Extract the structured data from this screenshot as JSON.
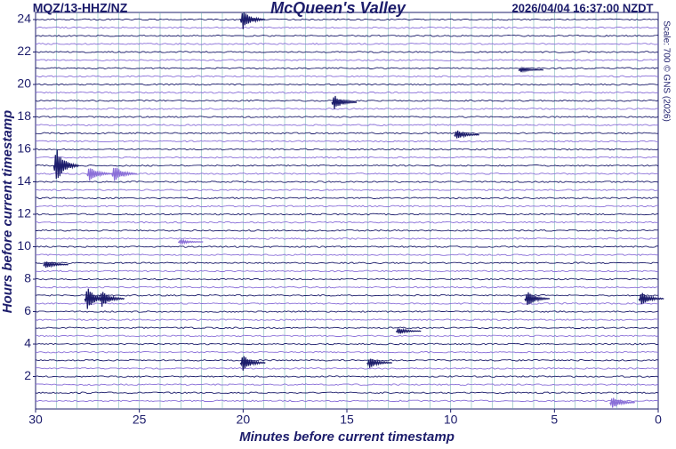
{
  "chart_data": {
    "type": "helicorder",
    "title": "McQueen's Valley",
    "station": "MQZ/13-HHZ/NZ",
    "timestamp": "2026/04/04 16:37:00 NZDT",
    "credit": "Scale: 700 © GNS (2026)",
    "x_label": "Minutes before current timestamp",
    "y_label": "Hours before current timestamp",
    "xlim": [
      30,
      0
    ],
    "xticks": [
      30,
      25,
      20,
      15,
      10,
      5,
      0
    ],
    "ylim": [
      0,
      24
    ],
    "yticks": [
      2,
      4,
      6,
      8,
      10,
      12,
      14,
      16,
      18,
      20,
      22,
      24
    ],
    "trace_colors": [
      "#1c1c6b",
      "#8a6fd8"
    ],
    "grid_color": "#5fa8a8",
    "events": [
      {
        "minute": 20,
        "hour": 24,
        "amplitude": 0.6
      },
      {
        "minute": 15.6,
        "hour": 18.9,
        "amplitude": 0.45
      },
      {
        "minute": 29,
        "hour": 15,
        "amplitude": 1.1
      },
      {
        "minute": 27.4,
        "hour": 14.5,
        "amplitude": 0.5
      },
      {
        "minute": 26.2,
        "hour": 14.5,
        "amplitude": 0.55
      },
      {
        "minute": 9.7,
        "hour": 16.9,
        "amplitude": 0.3
      },
      {
        "minute": 29.5,
        "hour": 8.9,
        "amplitude": 0.25
      },
      {
        "minute": 27.5,
        "hour": 6.8,
        "amplitude": 0.7
      },
      {
        "minute": 26.8,
        "hour": 6.8,
        "amplitude": 0.55
      },
      {
        "minute": 6.3,
        "hour": 6.8,
        "amplitude": 0.5
      },
      {
        "minute": 0.8,
        "hour": 6.8,
        "amplitude": 0.45
      },
      {
        "minute": 20,
        "hour": 2.85,
        "amplitude": 0.5
      },
      {
        "minute": 13.9,
        "hour": 2.85,
        "amplitude": 0.35
      },
      {
        "minute": 12.5,
        "hour": 4.8,
        "amplitude": 0.2
      },
      {
        "minute": 2.2,
        "hour": 0.4,
        "amplitude": 0.4
      },
      {
        "minute": 6.6,
        "hour": 20.9,
        "amplitude": 0.15
      },
      {
        "minute": 23,
        "hour": 10.3,
        "amplitude": 0.15
      }
    ]
  }
}
